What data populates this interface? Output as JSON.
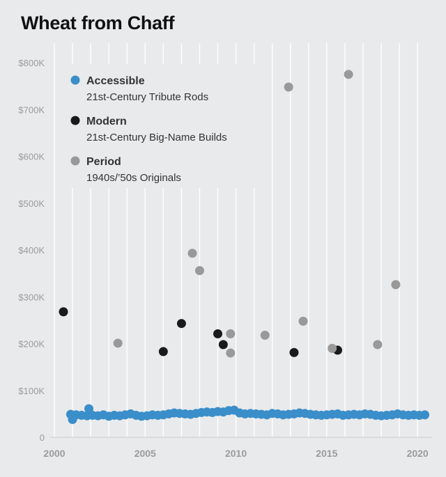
{
  "title": "Wheat from Chaff",
  "chart_data": {
    "type": "scatter",
    "title": "Wheat from Chaff",
    "xlabel": "",
    "ylabel": "",
    "xlim": [
      2000,
      2020.8
    ],
    "ylim": [
      0,
      800000
    ],
    "x_ticks": [
      2000,
      2005,
      2010,
      2015,
      2020
    ],
    "y_ticks": [
      {
        "value": 0,
        "label": "0"
      },
      {
        "value": 100000,
        "label": "$100K"
      },
      {
        "value": 200000,
        "label": "$200K"
      },
      {
        "value": 300000,
        "label": "$300K"
      },
      {
        "value": 400000,
        "label": "$400K"
      },
      {
        "value": 500000,
        "label": "$500K"
      },
      {
        "value": 600000,
        "label": "$600K"
      },
      {
        "value": 700000,
        "label": "$700K"
      },
      {
        "value": 800000,
        "label": "$800K"
      }
    ],
    "grid": "vertical lines at each year",
    "legend_position": "top-left",
    "series": [
      {
        "name": "Accessible",
        "description": "21st-Century Tribute Rods",
        "color": "#3a8ec9",
        "points": [
          [
            2000.9,
            49000
          ],
          [
            2001.0,
            38000
          ],
          [
            2001.2,
            48000
          ],
          [
            2001.5,
            47000
          ],
          [
            2001.8,
            46000
          ],
          [
            2001.9,
            61000
          ],
          [
            2002.1,
            47000
          ],
          [
            2002.4,
            46000
          ],
          [
            2002.7,
            48000
          ],
          [
            2003.0,
            45000
          ],
          [
            2003.3,
            47000
          ],
          [
            2003.6,
            46000
          ],
          [
            2003.9,
            48000
          ],
          [
            2004.2,
            50000
          ],
          [
            2004.5,
            47000
          ],
          [
            2004.8,
            45000
          ],
          [
            2005.1,
            46000
          ],
          [
            2005.4,
            48000
          ],
          [
            2005.7,
            47000
          ],
          [
            2006.0,
            48000
          ],
          [
            2006.3,
            50000
          ],
          [
            2006.6,
            52000
          ],
          [
            2006.9,
            51000
          ],
          [
            2007.2,
            50000
          ],
          [
            2007.5,
            49000
          ],
          [
            2007.8,
            51000
          ],
          [
            2008.1,
            53000
          ],
          [
            2008.4,
            54000
          ],
          [
            2008.7,
            53000
          ],
          [
            2009.0,
            55000
          ],
          [
            2009.3,
            54000
          ],
          [
            2009.6,
            57000
          ],
          [
            2009.9,
            58000
          ],
          [
            2010.2,
            52000
          ],
          [
            2010.5,
            50000
          ],
          [
            2010.8,
            51000
          ],
          [
            2011.1,
            50000
          ],
          [
            2011.4,
            49000
          ],
          [
            2011.7,
            48000
          ],
          [
            2012.0,
            51000
          ],
          [
            2012.3,
            50000
          ],
          [
            2012.6,
            48000
          ],
          [
            2012.9,
            49000
          ],
          [
            2013.2,
            50000
          ],
          [
            2013.5,
            52000
          ],
          [
            2013.8,
            51000
          ],
          [
            2014.1,
            49000
          ],
          [
            2014.4,
            48000
          ],
          [
            2014.7,
            47000
          ],
          [
            2015.0,
            48000
          ],
          [
            2015.3,
            49000
          ],
          [
            2015.6,
            50000
          ],
          [
            2015.9,
            47000
          ],
          [
            2016.2,
            48000
          ],
          [
            2016.5,
            49000
          ],
          [
            2016.8,
            48000
          ],
          [
            2017.1,
            50000
          ],
          [
            2017.4,
            49000
          ],
          [
            2017.7,
            47000
          ],
          [
            2018.0,
            46000
          ],
          [
            2018.3,
            47000
          ],
          [
            2018.6,
            48000
          ],
          [
            2018.9,
            50000
          ],
          [
            2019.2,
            48000
          ],
          [
            2019.5,
            47000
          ],
          [
            2019.8,
            48000
          ],
          [
            2020.1,
            47000
          ],
          [
            2020.4,
            48000
          ]
        ]
      },
      {
        "name": "Modern",
        "description": "21st-Century Big-Name Builds",
        "color": "#1a1a1a",
        "points": [
          [
            2000.5,
            268000
          ],
          [
            2006.0,
            183000
          ],
          [
            2007.0,
            243000
          ],
          [
            2009.0,
            221000
          ],
          [
            2009.3,
            198000
          ],
          [
            2013.2,
            181000
          ],
          [
            2015.6,
            186000
          ]
        ]
      },
      {
        "name": "Period",
        "description": "1940s/’50s Originals",
        "color": "#999999",
        "points": [
          [
            2003.5,
            201000
          ],
          [
            2007.6,
            393000
          ],
          [
            2008.0,
            356000
          ],
          [
            2009.7,
            221000
          ],
          [
            2009.7,
            180000
          ],
          [
            2011.6,
            218000
          ],
          [
            2012.9,
            748000
          ],
          [
            2013.7,
            248000
          ],
          [
            2015.3,
            190000
          ],
          [
            2016.2,
            775000
          ],
          [
            2017.8,
            198000
          ],
          [
            2018.8,
            326000
          ]
        ]
      }
    ]
  }
}
